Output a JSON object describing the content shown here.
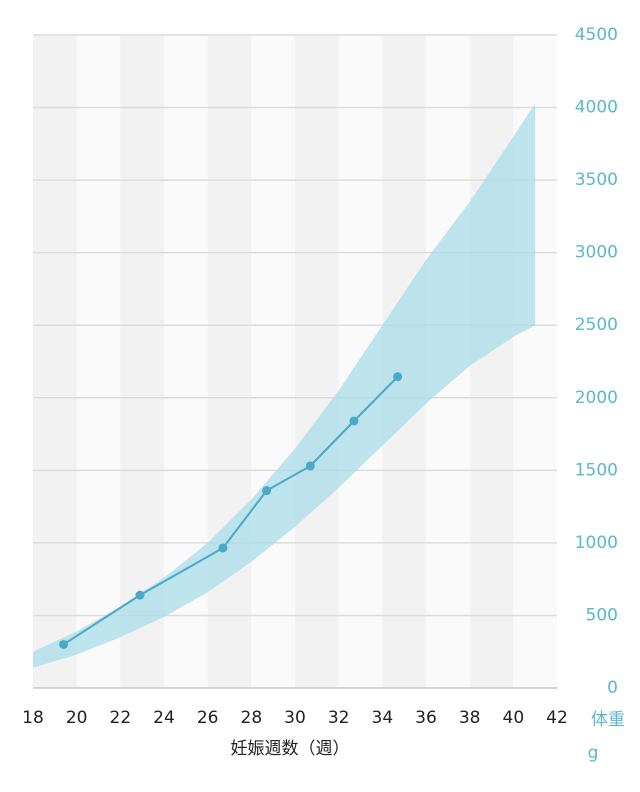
{
  "chart_data": {
    "type": "line",
    "x_label": "妊娠週数（週）",
    "y_label": "体重",
    "y_unit": "g",
    "series": [
      {
        "x": [
          19.4,
          22.9,
          26.7,
          28.7,
          30.7,
          32.7,
          34.7
        ],
        "values": [
          300,
          640,
          965,
          1360,
          1530,
          1840,
          2145
        ],
        "color": "#4aa8c8"
      }
    ],
    "band": {
      "x": [
        18,
        20,
        22,
        24,
        26,
        28,
        30,
        32,
        34,
        36,
        38,
        40,
        41
      ],
      "upper": [
        250,
        390,
        560,
        760,
        1000,
        1300,
        1650,
        2050,
        2500,
        2950,
        3350,
        3800,
        4030
      ],
      "lower": [
        140,
        230,
        350,
        490,
        660,
        870,
        1110,
        1380,
        1670,
        1960,
        2220,
        2420,
        2500
      ],
      "color": "#a9dce8"
    },
    "xlim": [
      18,
      42
    ],
    "xticks": [
      18,
      20,
      22,
      24,
      26,
      28,
      30,
      32,
      34,
      36,
      38,
      40,
      42
    ],
    "ylim": [
      0,
      4500
    ],
    "yticks": [
      0,
      500,
      1000,
      1500,
      2000,
      2500,
      3000,
      3500,
      4000,
      4500
    ],
    "y_axis_color": "#5bb8cc",
    "grid": true
  }
}
